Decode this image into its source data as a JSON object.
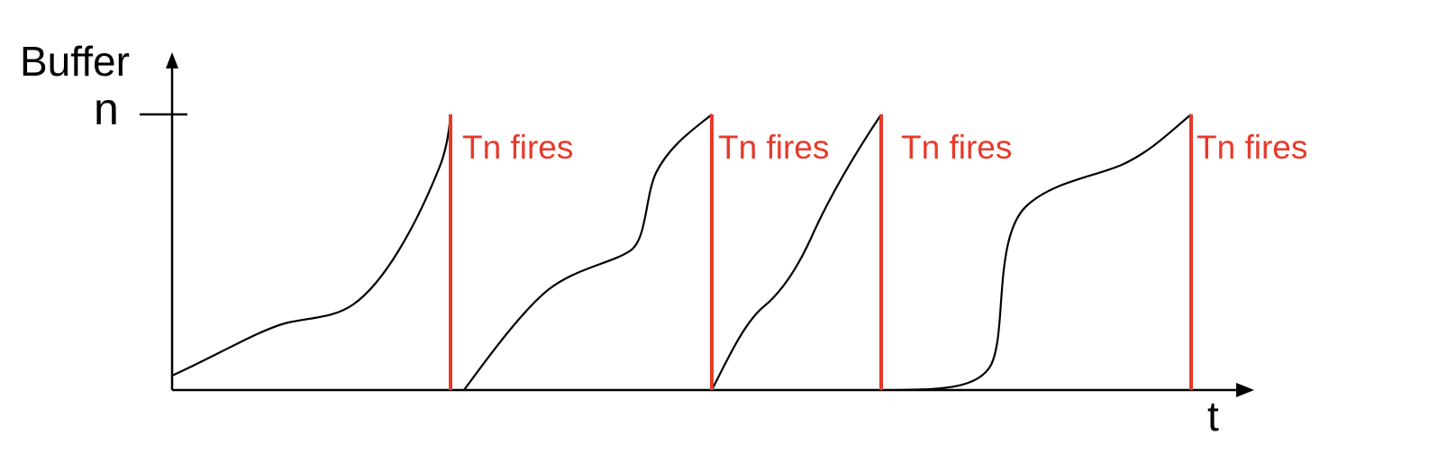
{
  "axes": {
    "y_label": "Buffer",
    "x_label": "t",
    "threshold_label": "n"
  },
  "events": [
    {
      "label": "Tn fires"
    },
    {
      "label": "Tn fires"
    },
    {
      "label": "Tn fires"
    },
    {
      "label": "Tn fires"
    }
  ],
  "colors": {
    "axis": "#000000",
    "curve": "#000000",
    "fire": "#e8392a"
  }
}
